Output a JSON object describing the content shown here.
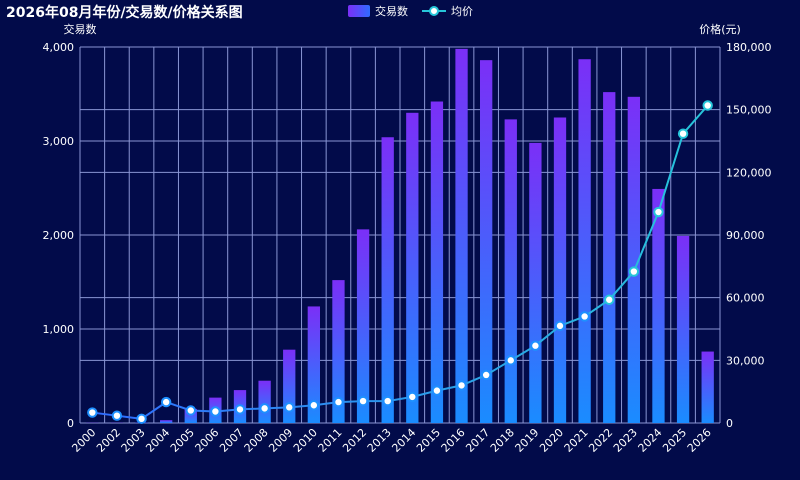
{
  "chart_data": {
    "type": "bar",
    "title": "2026年08月年份/交易数/价格关系图",
    "ylabel_left": "交易数",
    "ylabel_right": "价格(元)",
    "categories": [
      "2000",
      "2002",
      "2003",
      "2004",
      "2005",
      "2006",
      "2007",
      "2008",
      "2009",
      "2010",
      "2011",
      "2012",
      "2013",
      "2014",
      "2015",
      "2016",
      "2017",
      "2018",
      "2019",
      "2020",
      "2021",
      "2022",
      "2023",
      "2024",
      "2025",
      "2026"
    ],
    "left_axis": {
      "min": 0,
      "max": 4000,
      "ticks": [
        "0",
        "1,000",
        "2,000",
        "3,000",
        "4,000"
      ],
      "tick_values": [
        0,
        1000,
        2000,
        3000,
        4000
      ]
    },
    "right_axis": {
      "min": 0,
      "max": 180000,
      "ticks": [
        "0",
        "30,000",
        "60,000",
        "90,000",
        "120,000",
        "150,000",
        "180,000"
      ],
      "tick_values": [
        0,
        30000,
        60000,
        90000,
        120000,
        150000,
        180000
      ]
    },
    "series": [
      {
        "name": "交易数",
        "type": "bar",
        "axis": "left",
        "values": [
          2,
          2,
          5,
          30,
          150,
          270,
          350,
          450,
          780,
          1240,
          1520,
          2060,
          3040,
          3300,
          3420,
          3980,
          3860,
          3230,
          2980,
          3250,
          3870,
          3520,
          3470,
          2490,
          1990,
          760
        ]
      },
      {
        "name": "均价",
        "type": "line",
        "axis": "right",
        "values": [
          5000,
          3500,
          2000,
          10000,
          6000,
          5500,
          6500,
          7000,
          7500,
          8500,
          10000,
          10500,
          10500,
          12500,
          15500,
          18000,
          23000,
          30000,
          37000,
          46500,
          51000,
          59000,
          72500,
          101000,
          138500,
          152000
        ]
      }
    ],
    "grid": true,
    "legend_position": "top-center",
    "colors": {
      "background": "#020b4a",
      "bar_top": "#7b2ff7",
      "bar_bottom": "#1a8cff",
      "line": "#1e90ff",
      "line_end": "#26c6da",
      "point_fill": "#ffffff",
      "grid": "#8a96d4",
      "text": "#ffffff"
    }
  }
}
